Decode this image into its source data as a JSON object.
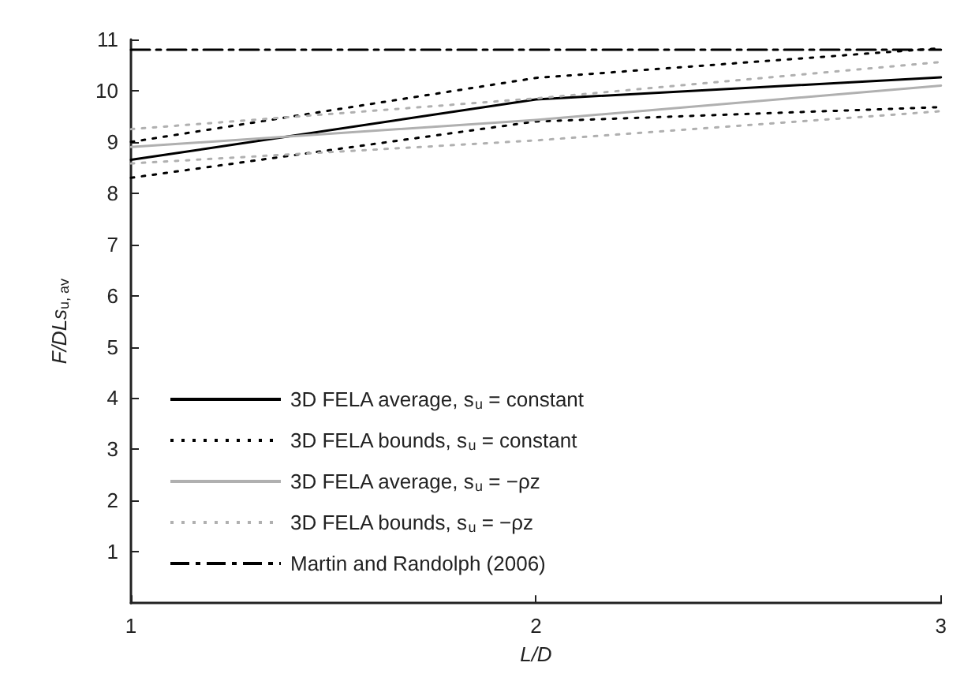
{
  "chart_data": {
    "type": "line",
    "xlabel": "L/D",
    "ylabel": "F/DLs$_{u, av}$",
    "x": [
      1,
      2,
      3
    ],
    "xlim": [
      1,
      3
    ],
    "xticks": [
      1,
      2,
      3
    ],
    "ylim": [
      0,
      11
    ],
    "yticks": [
      1,
      2,
      3,
      4,
      5,
      6,
      7,
      8,
      9,
      10,
      11
    ],
    "grid": false,
    "legend": "bottom left",
    "marker": "none",
    "series": [
      {
        "name": "3D FELA average, s$_{u}$ = constant",
        "color": "#000000",
        "line_style": "solid",
        "values": [
          8.65,
          9.83,
          10.26
        ]
      },
      {
        "name": "3D FELA bounds, s$_{u}$ = constant",
        "color": "#000000",
        "line_style": "dotted",
        "values": [
          9.0,
          10.25,
          10.83
        ]
      },
      {
        "color": "#000000",
        "line_style": "dotted",
        "values": [
          8.3,
          9.4,
          9.68
        ]
      },
      {
        "name": "3D FELA average, s$_{u}$ = −ρz",
        "color": "#b0b0b0",
        "line_style": "solid",
        "values": [
          8.9,
          9.43,
          10.1
        ]
      },
      {
        "name": "3D FELA bounds, s$_{u}$ = −ρz",
        "color": "#b0b0b0",
        "line_style": "dotted",
        "values": [
          9.25,
          9.85,
          10.56
        ]
      },
      {
        "color": "#b0b0b0",
        "line_style": "dotted",
        "values": [
          8.58,
          9.03,
          9.6
        ]
      },
      {
        "name": "Martin and Randolph (2006)",
        "color": "#000000",
        "line_style": "dashed",
        "values": [
          10.8,
          10.8,
          10.8
        ]
      }
    ]
  }
}
